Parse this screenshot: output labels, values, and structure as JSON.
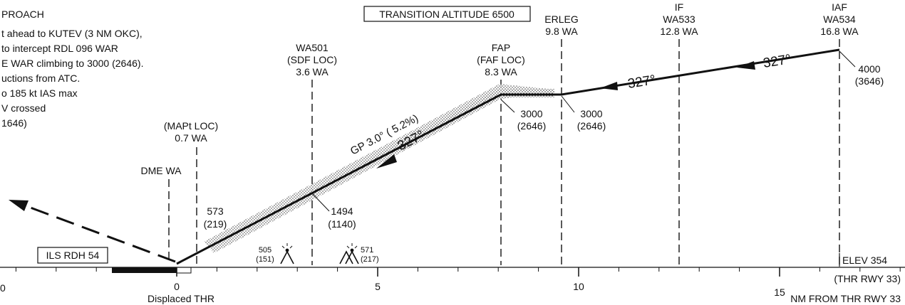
{
  "approach_notes": [
    "PROACH",
    "t ahead to KUTEV (3 NM OKC),",
    "to intercept RDL 096 WAR",
    "E WAR climbing to 3000 (2646).",
    "uctions from ATC.",
    "o 185 kt IAS max",
    "V crossed",
    "1646)"
  ],
  "transition_altitude": "TRANSITION ALTITUDE 6500",
  "fixes": {
    "dme_wa": {
      "label": "DME WA"
    },
    "mapt": {
      "label": "(MAPt LOC)",
      "dist": "0.7 WA"
    },
    "wa501": {
      "name": "WA501",
      "sub": "(SDF LOC)",
      "dist": "3.6 WA",
      "alt": "1494",
      "height": "(1140)"
    },
    "fap": {
      "name": "FAP",
      "sub": "(FAF LOC)",
      "dist": "8.3 WA",
      "alt": "3000",
      "height": "(2646)"
    },
    "erleg": {
      "name": "ERLEG",
      "dist": "9.8 WA",
      "alt": "3000",
      "height": "(2646)"
    },
    "if": {
      "name": "IF",
      "ident": "WA533",
      "dist": "12.8 WA"
    },
    "iaf": {
      "name": "IAF",
      "ident": "WA534",
      "dist": "16.8 WA",
      "alt": "4000",
      "height": "(3646)"
    }
  },
  "map_alt": {
    "alt": "573",
    "height": "(219)"
  },
  "glide_path": {
    "label": "GP 3.0° ( 5.2%)",
    "course": "327°"
  },
  "courses": {
    "intermediate": "327°",
    "initial": "327°"
  },
  "obstacles": [
    {
      "elev": "505",
      "height": "(151)"
    },
    {
      "elev": "571",
      "height": "(217)"
    }
  ],
  "ils_rdh": "ILS RDH 54",
  "elev": "ELEV 354",
  "thr_label": "(THR RWY 33)",
  "axis": {
    "ticks": [
      "0",
      "0",
      "5",
      "10",
      "15"
    ],
    "displaced_thr": "Displaced THR",
    "unit": "NM FROM THR RWY 33"
  }
}
